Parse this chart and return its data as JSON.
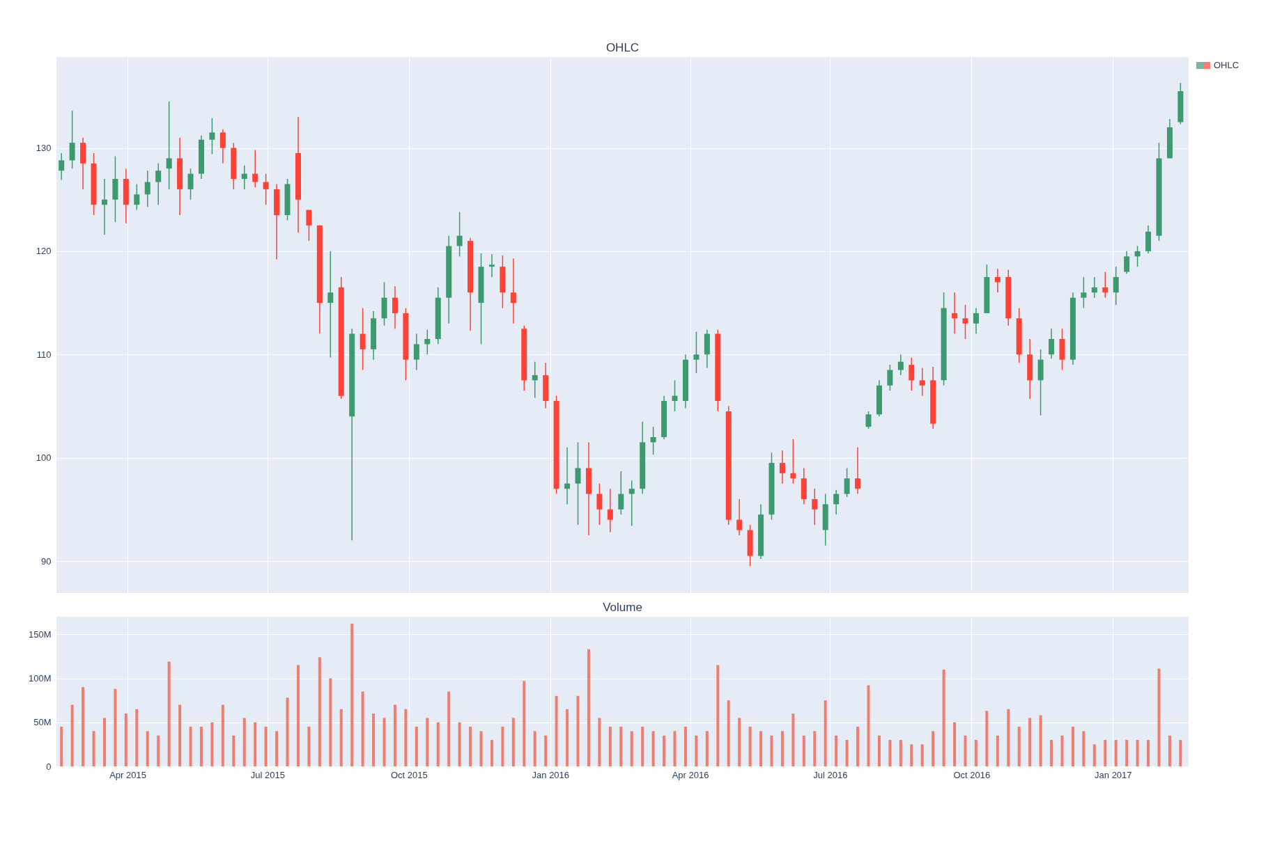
{
  "chart_data": [
    {
      "type": "candlestick",
      "title": "OHLC",
      "legend": "top right",
      "grid": true,
      "tick_labels": "y",
      "xlim": [
        "2015-02-16",
        "2017-02-17"
      ],
      "xticks": [
        {
          "value": "2015-04-01",
          "label": null
        },
        {
          "value": "2015-07-01",
          "label": null
        },
        {
          "value": "2015-10-01",
          "label": null
        },
        {
          "value": "2016-01-01",
          "label": null
        },
        {
          "value": "2016-04-01",
          "label": null
        },
        {
          "value": "2016-07-01",
          "label": null
        },
        {
          "value": "2016-10-01",
          "label": null
        },
        {
          "value": "2017-01-01",
          "label": null
        }
      ],
      "ylim": [
        86.9,
        138.8
      ],
      "yticks": [
        90,
        100,
        110,
        120,
        130
      ],
      "x": [
        "2015-02-17",
        "2015-02-24",
        "2015-03-03",
        "2015-03-10",
        "2015-03-17",
        "2015-03-24",
        "2015-03-31",
        "2015-04-07",
        "2015-04-14",
        "2015-04-21",
        "2015-04-28",
        "2015-05-05",
        "2015-05-12",
        "2015-05-19",
        "2015-05-26",
        "2015-06-02",
        "2015-06-09",
        "2015-06-16",
        "2015-06-23",
        "2015-06-30",
        "2015-07-07",
        "2015-07-14",
        "2015-07-21",
        "2015-07-28",
        "2015-08-04",
        "2015-08-11",
        "2015-08-18",
        "2015-08-25",
        "2015-09-01",
        "2015-09-08",
        "2015-09-15",
        "2015-09-22",
        "2015-09-29",
        "2015-10-06",
        "2015-10-13",
        "2015-10-20",
        "2015-10-27",
        "2015-11-03",
        "2015-11-10",
        "2015-11-17",
        "2015-11-24",
        "2015-12-01",
        "2015-12-08",
        "2015-12-15",
        "2015-12-22",
        "2015-12-29",
        "2016-01-05",
        "2016-01-12",
        "2016-01-19",
        "2016-01-26",
        "2016-02-02",
        "2016-02-09",
        "2016-02-16",
        "2016-02-23",
        "2016-03-01",
        "2016-03-08",
        "2016-03-15",
        "2016-03-22",
        "2016-03-29",
        "2016-04-05",
        "2016-04-12",
        "2016-04-19",
        "2016-04-26",
        "2016-05-03",
        "2016-05-10",
        "2016-05-17",
        "2016-05-24",
        "2016-05-31",
        "2016-06-07",
        "2016-06-14",
        "2016-06-21",
        "2016-06-28",
        "2016-07-05",
        "2016-07-12",
        "2016-07-19",
        "2016-07-26",
        "2016-08-02",
        "2016-08-09",
        "2016-08-16",
        "2016-08-23",
        "2016-08-30",
        "2016-09-06",
        "2016-09-13",
        "2016-09-20",
        "2016-09-27",
        "2016-10-04",
        "2016-10-11",
        "2016-10-18",
        "2016-10-25",
        "2016-11-01",
        "2016-11-08",
        "2016-11-15",
        "2016-11-22",
        "2016-11-29",
        "2016-12-06",
        "2016-12-13",
        "2016-12-20",
        "2016-12-27",
        "2017-01-03",
        "2017-01-10",
        "2017-01-17",
        "2017-01-24",
        "2017-01-31",
        "2017-02-07",
        "2017-02-14"
      ],
      "series": [
        {
          "name": "OHLC",
          "ohlc": [
            [
              127.8,
              129.5,
              126.9,
              128.8
            ],
            [
              128.8,
              133.6,
              128.0,
              130.5
            ],
            [
              130.5,
              131,
              126,
              128.5
            ],
            [
              128.5,
              129.5,
              123.5,
              124.5
            ],
            [
              124.5,
              127,
              121.6,
              125
            ],
            [
              125,
              129.2,
              122.8,
              127
            ],
            [
              127,
              128,
              122.7,
              124.5
            ],
            [
              124.5,
              126.5,
              124,
              125.5
            ],
            [
              125.5,
              127.8,
              124.3,
              126.7
            ],
            [
              126.7,
              128.5,
              124.5,
              127.8
            ],
            [
              128,
              134.5,
              126,
              129
            ],
            [
              129,
              131,
              123.5,
              126
            ],
            [
              126,
              128,
              125,
              127.5
            ],
            [
              127.5,
              131.2,
              127,
              130.8
            ],
            [
              130.8,
              132.9,
              129.4,
              131.5
            ],
            [
              131.5,
              131.8,
              128.5,
              130
            ],
            [
              130,
              130.5,
              126,
              127
            ],
            [
              127,
              128.3,
              126,
              127.5
            ],
            [
              127.5,
              129.8,
              126.2,
              126.7
            ],
            [
              126.7,
              127.5,
              124.5,
              126
            ],
            [
              126,
              126.5,
              119.2,
              123.5
            ],
            [
              123.5,
              127,
              123,
              126.5
            ],
            [
              129.5,
              133,
              121.8,
              125
            ],
            [
              124,
              124,
              121,
              122.5
            ],
            [
              122.5,
              122.5,
              112,
              115
            ],
            [
              115,
              120,
              109.7,
              116
            ],
            [
              116.5,
              117.5,
              105.7,
              106
            ],
            [
              104,
              112.5,
              92,
              112
            ],
            [
              112,
              114.5,
              108.5,
              110.5
            ],
            [
              110.5,
              114.2,
              109.5,
              113.5
            ],
            [
              113.5,
              117,
              112.8,
              115.5
            ],
            [
              115.5,
              116.6,
              112.5,
              114
            ],
            [
              114,
              114.5,
              107.5,
              109.5
            ],
            [
              109.5,
              112,
              108.5,
              111
            ],
            [
              111,
              112.4,
              110,
              111.5
            ],
            [
              111.5,
              116.5,
              111,
              115.5
            ],
            [
              115.5,
              121.5,
              113,
              120.5
            ],
            [
              120.5,
              123.8,
              119.5,
              121.5
            ],
            [
              121,
              121.3,
              112.3,
              116
            ],
            [
              115,
              119.8,
              111,
              118.5
            ],
            [
              118.5,
              119.7,
              117.5,
              118.7
            ],
            [
              118.5,
              119.6,
              114.5,
              116
            ],
            [
              116,
              119.3,
              113,
              115
            ],
            [
              112.5,
              112.8,
              106.5,
              107.5
            ],
            [
              107.5,
              109.3,
              105.8,
              108
            ],
            [
              108,
              109.2,
              104.8,
              105.5
            ],
            [
              105.5,
              106,
              96.5,
              97
            ],
            [
              97,
              101,
              95.5,
              97.5
            ],
            [
              97.5,
              101.5,
              93.5,
              99
            ],
            [
              99,
              101.5,
              92.5,
              96.5
            ],
            [
              96.5,
              97.5,
              93.5,
              95
            ],
            [
              95,
              97,
              92.8,
              94
            ],
            [
              95,
              98.7,
              94.5,
              96.5
            ],
            [
              96.5,
              97.8,
              93.4,
              97
            ],
            [
              97,
              103.5,
              96.5,
              101.5
            ],
            [
              101.5,
              103,
              100.3,
              102
            ],
            [
              102,
              106,
              101.8,
              105.5
            ],
            [
              105.5,
              107.5,
              104.5,
              106
            ],
            [
              105.5,
              110,
              104.8,
              109.5
            ],
            [
              109.5,
              112.2,
              108.2,
              110
            ],
            [
              110,
              112.4,
              108.7,
              112
            ],
            [
              112,
              112.4,
              104.5,
              105.5
            ],
            [
              104.5,
              105,
              93.5,
              94
            ],
            [
              94,
              96,
              92.5,
              93
            ],
            [
              93,
              93.5,
              89.5,
              90.5
            ],
            [
              90.5,
              95.5,
              90.2,
              94.5
            ],
            [
              94.5,
              100.5,
              94,
              99.5
            ],
            [
              99.5,
              100.7,
              97.5,
              98.5
            ],
            [
              98.5,
              101.8,
              97.5,
              98
            ],
            [
              98,
              99,
              95.5,
              96
            ],
            [
              96,
              97,
              93.5,
              95
            ],
            [
              93,
              96.5,
              91.5,
              95.5
            ],
            [
              95.5,
              96.9,
              94.5,
              96.5
            ],
            [
              96.5,
              99,
              96.2,
              98
            ],
            [
              98,
              101,
              96.5,
              97
            ],
            [
              103,
              104.5,
              102.8,
              104.2
            ],
            [
              104.2,
              107.5,
              104,
              107
            ],
            [
              107,
              109,
              106.5,
              108.5
            ],
            [
              108.5,
              110,
              108,
              109.3
            ],
            [
              109,
              109.7,
              106.5,
              107.5
            ],
            [
              107.5,
              108.7,
              106,
              107
            ],
            [
              107.5,
              108.8,
              102.8,
              103.3
            ],
            [
              107.5,
              116,
              107,
              114.5
            ],
            [
              114,
              116,
              112,
              113.5
            ],
            [
              113.5,
              114.8,
              111.5,
              113
            ],
            [
              113,
              114.5,
              112,
              114
            ],
            [
              114,
              118.7,
              114,
              117.5
            ],
            [
              117.5,
              118.3,
              116,
              117
            ],
            [
              117.5,
              118.2,
              112.8,
              113.5
            ],
            [
              113.5,
              114.5,
              109.2,
              110
            ],
            [
              110,
              111.5,
              105.7,
              107.5
            ],
            [
              107.5,
              110.5,
              104.1,
              109.5
            ],
            [
              110,
              112.5,
              109.6,
              111.5
            ],
            [
              111.5,
              112.5,
              108.5,
              109.5
            ],
            [
              109.5,
              116,
              109,
              115.5
            ],
            [
              115.5,
              117.5,
              114.5,
              116
            ],
            [
              116,
              117.5,
              115.5,
              116.5
            ],
            [
              116.5,
              118,
              115.5,
              116
            ],
            [
              116,
              118.5,
              114.8,
              117.5
            ],
            [
              118,
              120,
              117.8,
              119.5
            ],
            [
              119.5,
              120.5,
              118.5,
              120
            ],
            [
              120,
              122.5,
              119.8,
              121.9
            ],
            [
              121.5,
              130.5,
              121,
              129
            ],
            [
              129,
              132.8,
              129,
              132
            ],
            [
              132.5,
              136.3,
              132.3,
              135.5
            ]
          ],
          "colors": [
            "#3d9970",
            "#3d9970",
            "#ff4136",
            "#ff4136",
            "#3d9970",
            "#3d9970",
            "#ff4136",
            "#3d9970",
            "#3d9970",
            "#3d9970",
            "#3d9970",
            "#ff4136",
            "#3d9970",
            "#3d9970",
            "#3d9970",
            "#ff4136",
            "#ff4136",
            "#3d9970",
            "#ff4136",
            "#ff4136",
            "#ff4136",
            "#3d9970",
            "#ff4136",
            "#ff4136",
            "#ff4136",
            "#3d9970",
            "#ff4136",
            "#3d9970",
            "#ff4136",
            "#3d9970",
            "#3d9970",
            "#ff4136",
            "#ff4136",
            "#3d9970",
            "#3d9970",
            "#3d9970",
            "#3d9970",
            "#3d9970",
            "#ff4136",
            "#3d9970",
            "#3d9970",
            "#ff4136",
            "#ff4136",
            "#ff4136",
            "#3d9970",
            "#ff4136",
            "#ff4136",
            "#3d9970",
            "#3d9970",
            "#ff4136",
            "#ff4136",
            "#ff4136",
            "#3d9970",
            "#3d9970",
            "#3d9970",
            "#3d9970",
            "#3d9970",
            "#3d9970",
            "#3d9970",
            "#3d9970",
            "#3d9970",
            "#ff4136",
            "#ff4136",
            "#ff4136",
            "#ff4136",
            "#3d9970",
            "#3d9970",
            "#ff4136",
            "#ff4136",
            "#ff4136",
            "#ff4136",
            "#3d9970",
            "#3d9970",
            "#3d9970",
            "#ff4136",
            "#3d9970",
            "#3d9970",
            "#3d9970",
            "#3d9970",
            "#ff4136",
            "#ff4136",
            "#ff4136",
            "#3d9970",
            "#ff4136",
            "#ff4136",
            "#3d9970",
            "#3d9970",
            "#ff4136",
            "#ff4136",
            "#ff4136",
            "#ff4136",
            "#3d9970",
            "#3d9970",
            "#ff4136",
            "#3d9970",
            "#3d9970",
            "#3d9970",
            "#ff4136",
            "#3d9970",
            "#3d9970",
            "#3d9970",
            "#3d9970",
            "#3d9970",
            "#3d9970",
            "#3d9970"
          ]
        }
      ]
    },
    {
      "type": "bar",
      "title": "Volume",
      "grid": true,
      "color": "#ef7e6f",
      "xlim": [
        "2015-02-16",
        "2017-02-17"
      ],
      "xticks": [
        {
          "value": "2015-04-01",
          "label": "Apr 2015"
        },
        {
          "value": "2015-07-01",
          "label": "Jul 2015"
        },
        {
          "value": "2015-10-01",
          "label": "Oct 2015"
        },
        {
          "value": "2016-01-01",
          "label": "Jan 2016"
        },
        {
          "value": "2016-04-01",
          "label": "Apr 2016"
        },
        {
          "value": "2016-07-01",
          "label": "Jul 2016"
        },
        {
          "value": "2016-10-01",
          "label": "Oct 2016"
        },
        {
          "value": "2017-01-01",
          "label": "Jan 2017"
        }
      ],
      "ylim": [
        0,
        170000000
      ],
      "yticks": [
        0,
        {
          "value": 50000000,
          "label": "50M"
        },
        {
          "value": 100000000,
          "label": "100M"
        },
        {
          "value": 150000000,
          "label": "150M"
        }
      ],
      "x": [
        "2015-02-17",
        "2015-02-24",
        "2015-03-03",
        "2015-03-10",
        "2015-03-17",
        "2015-03-24",
        "2015-03-31",
        "2015-04-07",
        "2015-04-14",
        "2015-04-21",
        "2015-04-28",
        "2015-05-05",
        "2015-05-12",
        "2015-05-19",
        "2015-05-26",
        "2015-06-02",
        "2015-06-09",
        "2015-06-16",
        "2015-06-23",
        "2015-06-30",
        "2015-07-07",
        "2015-07-14",
        "2015-07-21",
        "2015-07-28",
        "2015-08-04",
        "2015-08-11",
        "2015-08-18",
        "2015-08-25",
        "2015-09-01",
        "2015-09-08",
        "2015-09-15",
        "2015-09-22",
        "2015-09-29",
        "2015-10-06",
        "2015-10-13",
        "2015-10-20",
        "2015-10-27",
        "2015-11-03",
        "2015-11-10",
        "2015-11-17",
        "2015-11-24",
        "2015-12-01",
        "2015-12-08",
        "2015-12-15",
        "2015-12-22",
        "2015-12-29",
        "2016-01-05",
        "2016-01-12",
        "2016-01-19",
        "2016-01-26",
        "2016-02-02",
        "2016-02-09",
        "2016-02-16",
        "2016-02-23",
        "2016-03-01",
        "2016-03-08",
        "2016-03-15",
        "2016-03-22",
        "2016-03-29",
        "2016-04-05",
        "2016-04-12",
        "2016-04-19",
        "2016-04-26",
        "2016-05-03",
        "2016-05-10",
        "2016-05-17",
        "2016-05-24",
        "2016-05-31",
        "2016-06-07",
        "2016-06-14",
        "2016-06-21",
        "2016-06-28",
        "2016-07-05",
        "2016-07-12",
        "2016-07-19",
        "2016-07-26",
        "2016-08-02",
        "2016-08-09",
        "2016-08-16",
        "2016-08-23",
        "2016-08-30",
        "2016-09-06",
        "2016-09-13",
        "2016-09-20",
        "2016-09-27",
        "2016-10-04",
        "2016-10-11",
        "2016-10-18",
        "2016-10-25",
        "2016-11-01",
        "2016-11-08",
        "2016-11-15",
        "2016-11-22",
        "2016-11-29",
        "2016-12-06",
        "2016-12-13",
        "2016-12-20",
        "2016-12-27",
        "2017-01-03",
        "2017-01-10",
        "2017-01-17",
        "2017-01-24",
        "2017-01-31",
        "2017-02-07",
        "2017-02-14"
      ],
      "values": [
        45000000,
        70000000,
        90000000,
        40000000,
        55000000,
        88000000,
        60000000,
        65000000,
        40000000,
        35000000,
        119000000,
        70000000,
        45000000,
        45000000,
        50000000,
        70000000,
        35000000,
        55000000,
        50000000,
        45000000,
        40000000,
        78000000,
        115000000,
        45000000,
        124000000,
        100000000,
        65000000,
        162000000,
        85000000,
        60000000,
        55000000,
        70000000,
        65000000,
        45000000,
        55000000,
        50000000,
        85000000,
        50000000,
        45000000,
        40000000,
        30000000,
        45000000,
        55000000,
        97000000,
        40000000,
        35000000,
        80000000,
        65000000,
        80000000,
        133000000,
        55000000,
        45000000,
        45000000,
        40000000,
        45000000,
        40000000,
        35000000,
        40000000,
        45000000,
        35000000,
        40000000,
        115000000,
        75000000,
        55000000,
        45000000,
        40000000,
        35000000,
        40000000,
        60000000,
        35000000,
        40000000,
        75000000,
        35000000,
        30000000,
        45000000,
        92000000,
        35000000,
        30000000,
        30000000,
        25000000,
        25000000,
        40000000,
        110000000,
        50000000,
        35000000,
        30000000,
        63000000,
        35000000,
        65000000,
        45000000,
        55000000,
        58000000,
        30000000,
        35000000,
        45000000,
        40000000,
        25000000,
        30000000,
        30000000,
        30000000,
        30000000,
        30000000,
        111000000,
        35000000,
        30000000
      ]
    }
  ]
}
